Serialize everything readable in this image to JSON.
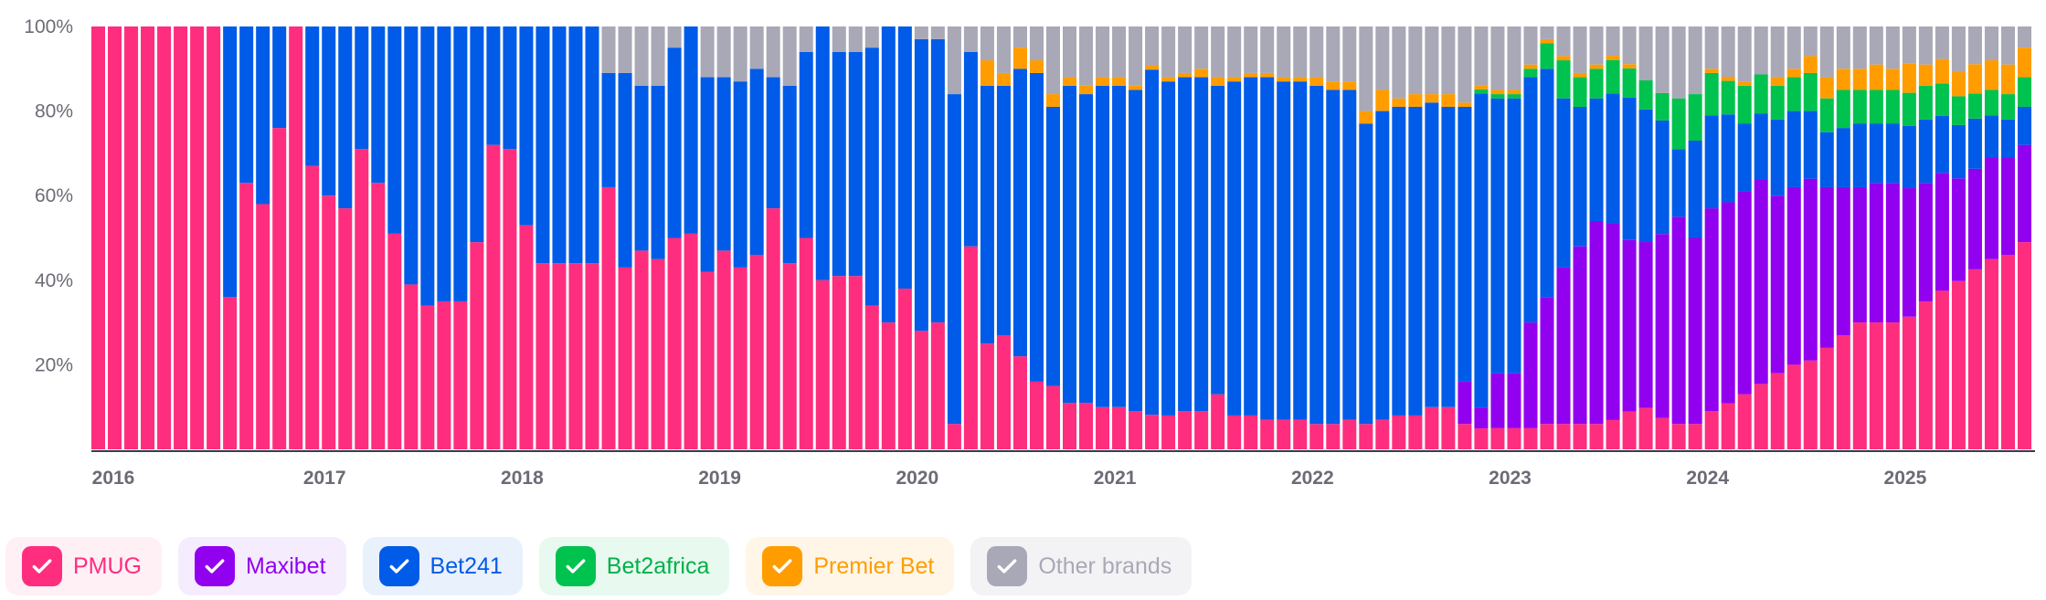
{
  "chart_data": {
    "type": "bar",
    "stacked": true,
    "normalized_percent": true,
    "y_ticks": [
      "20%",
      "40%",
      "60%",
      "80%",
      "100%"
    ],
    "ylim": [
      0,
      100
    ],
    "x_ticks": [
      "2016",
      "2017",
      "2018",
      "2019",
      "2020",
      "2021",
      "2022",
      "2023",
      "2024",
      "2025"
    ],
    "x_range": [
      "2015-11",
      "2025-05"
    ],
    "series": [
      {
        "name": "PMUG",
        "color": "#ff2d7e",
        "values": [
          100,
          100,
          100,
          100,
          100,
          100,
          100,
          100,
          36,
          63,
          58,
          76,
          100,
          67,
          60,
          57,
          71,
          63,
          51,
          39,
          34,
          35,
          35,
          49,
          72,
          71,
          53,
          44,
          44,
          44,
          44,
          62,
          43,
          47,
          45,
          50,
          51,
          42,
          47,
          43,
          46,
          57,
          44,
          50,
          40,
          41,
          41,
          34,
          30,
          38,
          28,
          30,
          6,
          48,
          25,
          27,
          22,
          16,
          15,
          11,
          11,
          10,
          10,
          9,
          8,
          8,
          9,
          9,
          13,
          8,
          8,
          7,
          7,
          7,
          6,
          6,
          7,
          6,
          7,
          8,
          8,
          10,
          10,
          6,
          5,
          5,
          5,
          5,
          6,
          6,
          6,
          6,
          7,
          9,
          10,
          8,
          6,
          6,
          9,
          11,
          13,
          15,
          18,
          20,
          21,
          24,
          27,
          30,
          30,
          30,
          32,
          35,
          39,
          41,
          43,
          45,
          46,
          49
        ]
      },
      {
        "name": "Maxibet",
        "color": "#9200f0",
        "values": [
          0,
          0,
          0,
          0,
          0,
          0,
          0,
          0,
          0,
          0,
          0,
          0,
          0,
          0,
          0,
          0,
          0,
          0,
          0,
          0,
          0,
          0,
          0,
          0,
          0,
          0,
          0,
          0,
          0,
          0,
          0,
          0,
          0,
          0,
          0,
          0,
          0,
          0,
          0,
          0,
          0,
          0,
          0,
          0,
          0,
          0,
          0,
          0,
          0,
          0,
          0,
          0,
          0,
          0,
          0,
          0,
          0,
          0,
          0,
          0,
          0,
          0,
          0,
          0,
          0,
          0,
          0,
          0,
          0,
          0,
          0,
          0,
          0,
          0,
          0,
          0,
          0,
          0,
          0,
          0,
          0,
          0,
          0,
          10,
          5,
          13,
          13,
          25,
          30,
          37,
          42,
          48,
          47,
          41,
          40,
          47,
          49,
          44,
          48,
          48,
          48,
          47,
          42,
          42,
          43,
          38,
          35,
          32,
          33,
          33,
          31,
          28,
          29,
          25,
          24,
          24,
          23,
          23
        ]
      },
      {
        "name": "Bet241",
        "color": "#005be8",
        "values": [
          0,
          0,
          0,
          0,
          0,
          0,
          0,
          0,
          64,
          37,
          42,
          24,
          0,
          33,
          40,
          43,
          29,
          37,
          49,
          61,
          66,
          65,
          65,
          51,
          28,
          29,
          47,
          56,
          56,
          56,
          56,
          27,
          46,
          39,
          41,
          45,
          49,
          46,
          41,
          44,
          44,
          31,
          42,
          44,
          60,
          53,
          53,
          61,
          70,
          62,
          69,
          67,
          78,
          46,
          61,
          59,
          68,
          73,
          66,
          75,
          73,
          76,
          76,
          76,
          80,
          79,
          79,
          79,
          73,
          79,
          80,
          81,
          80,
          80,
          80,
          79,
          78,
          71,
          73,
          73,
          73,
          72,
          71,
          65,
          75,
          65,
          65,
          58,
          54,
          40,
          33,
          29,
          31,
          34,
          32,
          29,
          16,
          23,
          22,
          21,
          16,
          15,
          18,
          18,
          16,
          13,
          14,
          15,
          14,
          14,
          15,
          15,
          14,
          13,
          12,
          10,
          9,
          9
        ]
      },
      {
        "name": "Bet2africa",
        "color": "#00c24e",
        "values": [
          0,
          0,
          0,
          0,
          0,
          0,
          0,
          0,
          0,
          0,
          0,
          0,
          0,
          0,
          0,
          0,
          0,
          0,
          0,
          0,
          0,
          0,
          0,
          0,
          0,
          0,
          0,
          0,
          0,
          0,
          0,
          0,
          0,
          0,
          0,
          0,
          0,
          0,
          0,
          0,
          0,
          0,
          0,
          0,
          0,
          0,
          0,
          0,
          0,
          0,
          0,
          0,
          0,
          0,
          0,
          0,
          0,
          0,
          0,
          0,
          0,
          0,
          0,
          0,
          0,
          0,
          0,
          0,
          0,
          0,
          0,
          0,
          0,
          0,
          0,
          0,
          0,
          0,
          0,
          0,
          0,
          0,
          0,
          0,
          1,
          1,
          1,
          2,
          6,
          9,
          7,
          7,
          8,
          7,
          7,
          7,
          12,
          11,
          10,
          8,
          9,
          9,
          8,
          8,
          9,
          8,
          9,
          8,
          8,
          8,
          8,
          8,
          8,
          7,
          6,
          6,
          6,
          7
        ]
      },
      {
        "name": "Premier Bet",
        "color": "#ff9d00",
        "values": [
          0,
          0,
          0,
          0,
          0,
          0,
          0,
          0,
          0,
          0,
          0,
          0,
          0,
          0,
          0,
          0,
          0,
          0,
          0,
          0,
          0,
          0,
          0,
          0,
          0,
          0,
          0,
          0,
          0,
          0,
          0,
          0,
          0,
          0,
          0,
          0,
          0,
          0,
          0,
          0,
          0,
          0,
          0,
          0,
          0,
          0,
          0,
          0,
          0,
          0,
          0,
          0,
          0,
          0,
          6,
          3,
          5,
          3,
          3,
          2,
          2,
          2,
          2,
          1,
          1,
          1,
          1,
          2,
          2,
          1,
          1,
          1,
          1,
          1,
          2,
          2,
          2,
          3,
          5,
          2,
          3,
          2,
          3,
          1,
          1,
          1,
          1,
          1,
          1,
          1,
          1,
          1,
          1,
          1,
          0,
          0,
          0,
          0,
          1,
          1,
          1,
          0,
          2,
          2,
          4,
          5,
          5,
          5,
          6,
          5,
          7,
          5,
          6,
          6,
          7,
          7,
          7,
          7
        ]
      },
      {
        "name": "Other brands",
        "color": "#a9a8b6",
        "values": [
          0,
          0,
          0,
          0,
          0,
          0,
          0,
          0,
          0,
          0,
          0,
          0,
          0,
          0,
          0,
          0,
          0,
          0,
          0,
          0,
          0,
          0,
          0,
          0,
          0,
          0,
          0,
          0,
          0,
          0,
          0,
          11,
          11,
          14,
          14,
          5,
          0,
          12,
          12,
          13,
          10,
          12,
          14,
          6,
          0,
          6,
          6,
          5,
          0,
          0,
          3,
          3,
          16,
          6,
          8,
          11,
          5,
          8,
          16,
          12,
          14,
          12,
          12,
          14,
          9,
          12,
          11,
          10,
          12,
          12,
          11,
          11,
          12,
          12,
          12,
          13,
          13,
          20,
          15,
          17,
          16,
          16,
          16,
          18,
          14,
          15,
          15,
          9,
          3,
          7,
          11,
          9,
          7,
          9,
          13,
          17,
          17,
          16,
          10,
          12,
          13,
          11,
          12,
          10,
          7,
          12,
          10,
          10,
          9,
          10,
          9,
          9,
          8,
          11,
          9,
          8,
          9,
          5
        ]
      }
    ]
  },
  "legend": [
    {
      "label": "PMUG",
      "check_color": "#ff2d7e",
      "bg": "#fff0f6",
      "text_color": "#ff2d7e"
    },
    {
      "label": "Maxibet",
      "check_color": "#9200f0",
      "bg": "#f5ecfe",
      "text_color": "#9200f0"
    },
    {
      "label": "Bet241",
      "check_color": "#005be8",
      "bg": "#e9f1fd",
      "text_color": "#005be8"
    },
    {
      "label": "Bet2africa",
      "check_color": "#00c24e",
      "bg": "#e8f9ef",
      "text_color": "#00b048"
    },
    {
      "label": "Premier Bet",
      "check_color": "#ff9d00",
      "bg": "#fff6e8",
      "text_color": "#ff9d00"
    },
    {
      "label": "Other brands",
      "check_color": "#a9a8b6",
      "bg": "#f3f3f5",
      "text_color": "#a9a8b6"
    }
  ]
}
